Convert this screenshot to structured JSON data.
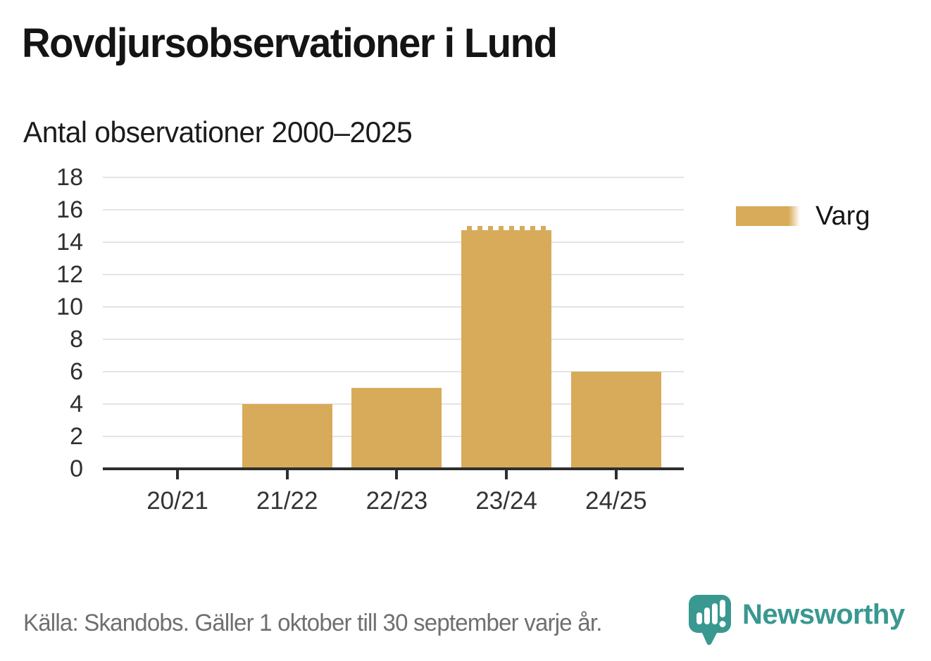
{
  "title": "Rovdjursobservationer i Lund",
  "subtitle": "Antal observationer 2000–2025",
  "legend": {
    "label": "Varg",
    "swatch_color": "#D8AB5A"
  },
  "footer": {
    "source": "Källa: Skandobs. Gäller 1 oktober till 30 september varje år.",
    "brand": "Newsworthy"
  },
  "colors": {
    "bar": "#D8AB5A",
    "brand_teal": "#399890",
    "gridline": "#E4E4E4",
    "axis": "#2E2E2E",
    "text_dark": "#141414",
    "text_muted": "#6F6F73"
  },
  "chart_data": {
    "type": "bar",
    "title": "Rovdjursobservationer i Lund",
    "subtitle": "Antal observationer 2000–2025",
    "categories": [
      "20/21",
      "21/22",
      "22/23",
      "23/24",
      "24/25"
    ],
    "series": [
      {
        "name": "Varg",
        "color": "#D8AB5A",
        "values": [
          0,
          4,
          5,
          15,
          6
        ]
      }
    ],
    "xlabel": "",
    "ylabel": "",
    "ylim": [
      0,
      18
    ],
    "yticks": [
      0,
      2,
      4,
      6,
      8,
      10,
      12,
      14,
      16,
      18
    ],
    "grid": "horizontal",
    "legend_position": "right",
    "preliminary_categories": [
      "23/24"
    ],
    "source": "Källa: Skandobs. Gäller 1 oktober till 30 september varje år."
  }
}
